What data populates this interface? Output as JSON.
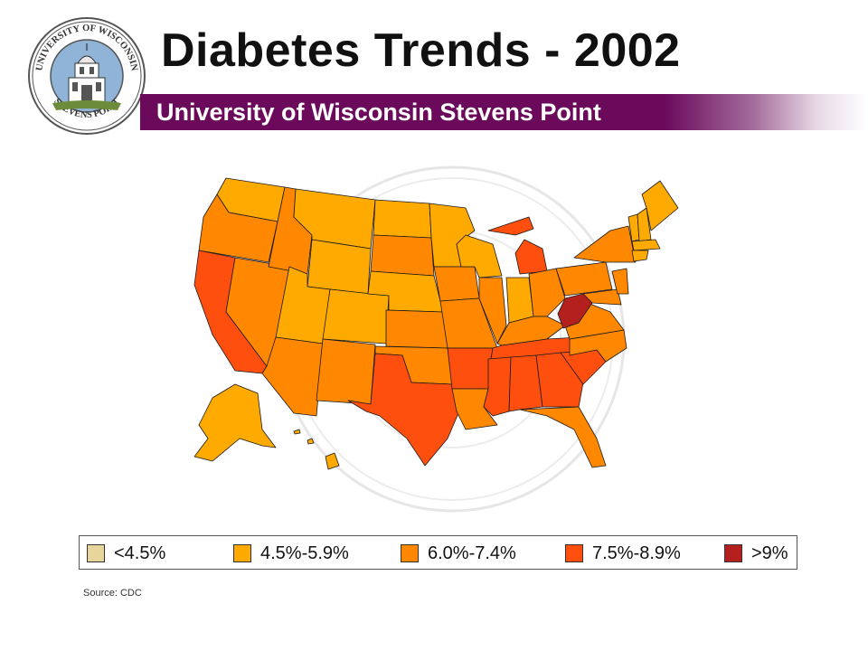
{
  "header": {
    "title": "Diabetes Trends - 2002",
    "subtitle": "University of Wisconsin Stevens Point",
    "bar_color": "#6b0a5b"
  },
  "logo": {
    "text_top": "UNIVERSITY OF WISCONSIN",
    "text_bottom": "STEVENS POINT"
  },
  "legend": {
    "items": [
      {
        "label": "<4.5%",
        "color": "#e8d59a"
      },
      {
        "label": "4.5%-5.9%",
        "color": "#ffaa00"
      },
      {
        "label": "6.0%-7.4%",
        "color": "#ff8800"
      },
      {
        "label": "7.5%-8.9%",
        "color": "#ff4f0f"
      },
      {
        "label": ">9%",
        "color": "#b3201e"
      }
    ]
  },
  "source": "Source: CDC"
}
